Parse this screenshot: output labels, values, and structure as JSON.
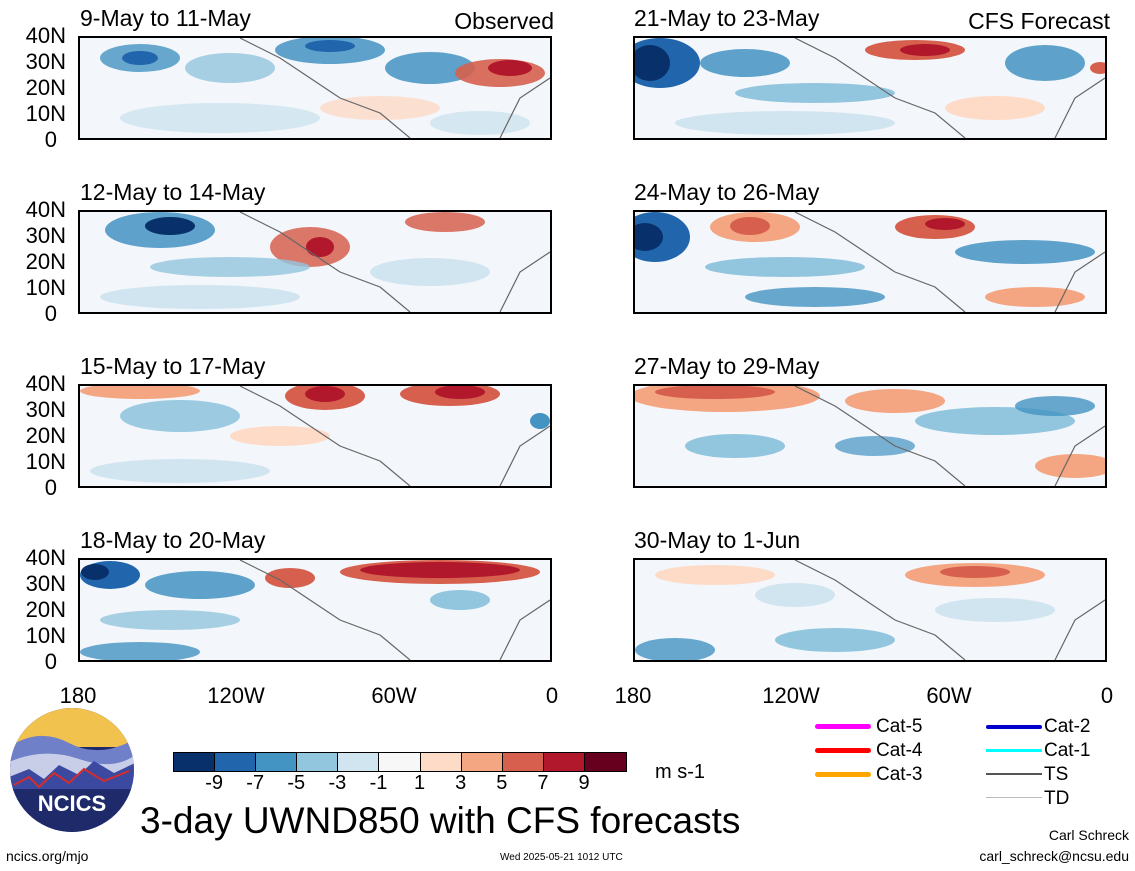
{
  "panels_left": [
    {
      "title": "9-May to 11-May",
      "tag": "Observed"
    },
    {
      "title": "12-May to 14-May",
      "tag": ""
    },
    {
      "title": "15-May to 17-May",
      "tag": ""
    },
    {
      "title": "18-May to 20-May",
      "tag": ""
    }
  ],
  "panels_right": [
    {
      "title": "21-May to 23-May",
      "tag": "CFS Forecast"
    },
    {
      "title": "24-May to 26-May",
      "tag": ""
    },
    {
      "title": "27-May to 29-May",
      "tag": ""
    },
    {
      "title": "30-May to 1-Jun",
      "tag": ""
    }
  ],
  "lat_labels": [
    "40N",
    "30N",
    "20N",
    "10N",
    "0"
  ],
  "lon_labels": [
    "180",
    "120W",
    "60W",
    "0"
  ],
  "colorbar": {
    "labels": [
      "-9",
      "-7",
      "-5",
      "-3",
      "-1",
      "1",
      "3",
      "5",
      "7",
      "9"
    ],
    "colors": [
      "#08306b",
      "#2166ac",
      "#4393c3",
      "#92c5de",
      "#d1e5f0",
      "#f7f7f7",
      "#fddbc7",
      "#f4a582",
      "#d6604d",
      "#b2182b",
      "#67001f"
    ],
    "units": "m s-1"
  },
  "title": "3-day UWND850 with CFS forecasts",
  "legend": [
    {
      "label": "Cat-5",
      "color": "#ff00ff"
    },
    {
      "label": "Cat-4",
      "color": "#ff0000"
    },
    {
      "label": "Cat-3",
      "color": "#ffa500"
    },
    {
      "label": "Cat-2",
      "color": "#0000cc"
    },
    {
      "label": "Cat-1",
      "color": "#00ffff"
    },
    {
      "label": "TS",
      "color": "#555555"
    },
    {
      "label": "TD",
      "color": "#bbbbbb"
    }
  ],
  "logo_text": "NCICS",
  "footer": {
    "url": "ncics.org/mjo",
    "timestamp": "Wed 2025-05-21 1012 UTC",
    "author": "Carl Schreck",
    "email": "carl_schreck@ncsu.edu"
  }
}
